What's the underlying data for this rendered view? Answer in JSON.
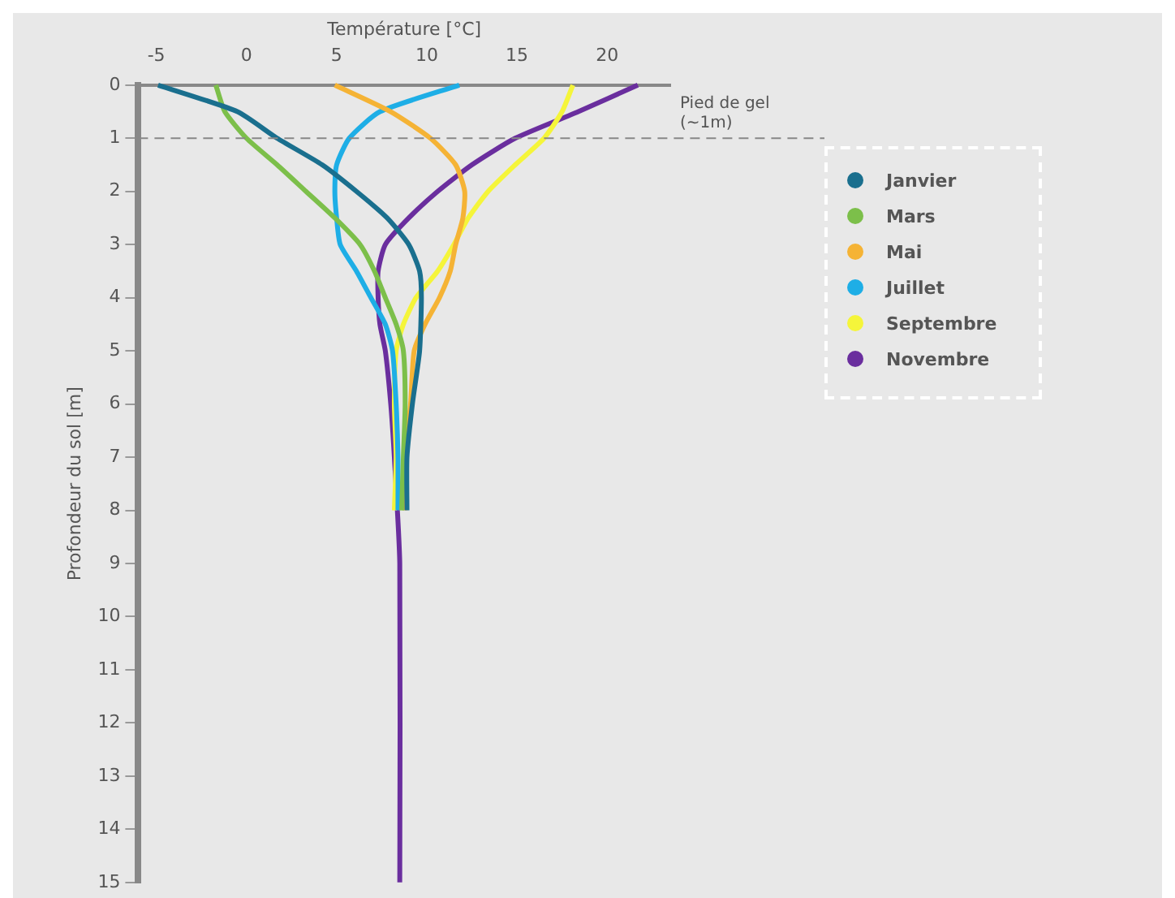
{
  "chart_data": {
    "type": "line",
    "xlabel": "Température [°C]",
    "ylabel": "Profondeur du sol [m]",
    "xlim": [
      -6,
      23.5
    ],
    "xticks": [
      -5,
      0,
      5,
      10,
      15,
      20
    ],
    "ylim": [
      15,
      0
    ],
    "yticks": [
      0,
      1,
      2,
      3,
      4,
      5,
      6,
      7,
      8,
      9,
      10,
      11,
      12,
      13,
      14,
      15
    ],
    "grid": false,
    "legend": "right",
    "marker": "none",
    "line_style": "solid",
    "ref_lines": [
      {
        "axis": "y",
        "value": 1,
        "label": "Pied de gel (~1m)",
        "color": "#888888",
        "line_style": "dashed"
      }
    ],
    "series": [
      {
        "name": "Janvier",
        "color": "#1a6f8e",
        "x": [
          -4.9,
          -0.5,
          1.7,
          4.2,
          6.1,
          7.8,
          9.0,
          9.6,
          9.7,
          9.6,
          9.2,
          8.9,
          8.9
        ],
        "values": [
          0,
          0.5,
          1,
          1.5,
          2,
          2.5,
          3,
          3.5,
          4,
          5,
          6,
          7,
          8
        ]
      },
      {
        "name": "Mars",
        "color": "#7cbf4a",
        "x": [
          -1.7,
          -1.2,
          0,
          1.7,
          3.3,
          4.9,
          6.3,
          7.1,
          7.7,
          8.3,
          8.7,
          8.8,
          8.7,
          8.6
        ],
        "values": [
          0,
          0.5,
          1,
          1.5,
          2,
          2.5,
          3,
          3.5,
          4,
          4.5,
          5,
          6,
          7,
          8
        ]
      },
      {
        "name": "Mai",
        "color": "#f5b335",
        "x": [
          4.9,
          8.0,
          10.2,
          11.6,
          12.1,
          12.0,
          11.6,
          11.3,
          10.7,
          9.9,
          9.3,
          9.1,
          8.8,
          8.8
        ],
        "values": [
          0,
          0.5,
          1,
          1.5,
          2,
          2.5,
          3,
          3.5,
          4,
          4.5,
          5,
          6,
          7,
          8
        ]
      },
      {
        "name": "Juillet",
        "color": "#1eaee6",
        "x": [
          11.8,
          7.4,
          5.7,
          5.0,
          4.9,
          5.0,
          5.2,
          6.1,
          6.9,
          7.7,
          8.1,
          8.3,
          8.4,
          8.4
        ],
        "values": [
          0,
          0.5,
          1,
          1.5,
          2,
          2.5,
          3,
          3.5,
          4,
          4.5,
          5,
          6,
          7,
          8
        ]
      },
      {
        "name": "Septembre",
        "color": "#f5f53a",
        "x": [
          18.1,
          17.5,
          16.5,
          14.9,
          13.4,
          12.3,
          11.5,
          10.6,
          9.4,
          8.7,
          8.3,
          8.2,
          8.3,
          8.2
        ],
        "values": [
          0,
          0.5,
          1,
          1.5,
          2,
          2.5,
          3,
          3.5,
          4,
          4.5,
          5,
          6,
          7,
          8
        ]
      },
      {
        "name": "Novembre",
        "color": "#6a2e9e",
        "x": [
          21.7,
          18.4,
          14.9,
          12.5,
          10.6,
          9.0,
          7.7,
          7.3,
          7.3,
          7.4,
          7.7,
          8.0,
          8.2,
          8.5,
          8.5
        ],
        "values": [
          0,
          0.5,
          1,
          1.5,
          2,
          2.5,
          3,
          3.5,
          4,
          4.5,
          5,
          6,
          7,
          9,
          15
        ]
      }
    ]
  }
}
